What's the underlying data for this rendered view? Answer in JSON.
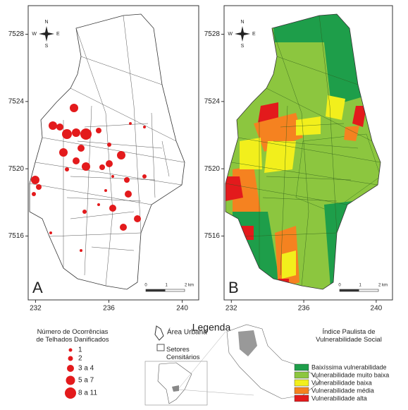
{
  "maps": [
    {
      "label": "A"
    },
    {
      "label": "B"
    }
  ],
  "xticks": [
    232,
    236,
    240
  ],
  "yticks": [
    7516,
    7520,
    7524,
    7528
  ],
  "xlim": [
    231.6,
    240.9
  ],
  "ylim": [
    7512.2,
    7529.7
  ],
  "compass": {
    "n": "N",
    "s": "S",
    "e": "E",
    "w": "W"
  },
  "scale_bar": [
    "0",
    "1",
    "2 km"
  ],
  "legend": {
    "title": "Legenda",
    "damage": {
      "title": "Número de Ocorrências de Telhados Danificados",
      "classes": [
        "1",
        "2",
        "3 a 4",
        "5 a 7",
        "8 a 11"
      ]
    },
    "urban_area": "Área Urbana",
    "census_sectors": "Setores Censitários",
    "vulnerability": {
      "title": "Índice Paulista de Vulnerabilidade Social",
      "classes": [
        {
          "label": "Baixíssima vulnerabilidade",
          "color": "#1e9e4a"
        },
        {
          "label": "Vulnerabilidade muito baixa",
          "color": "#8cc63f"
        },
        {
          "label": "Vulnerabilidade baixa",
          "color": "#f2ef1c"
        },
        {
          "label": "Vulnerabilidade média",
          "color": "#f58220"
        },
        {
          "label": "Vulnerabilidade alta",
          "color": "#e31a1c"
        }
      ]
    }
  }
}
